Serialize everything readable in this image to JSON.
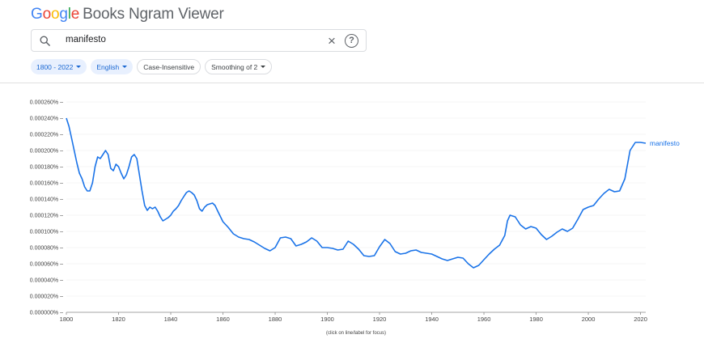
{
  "app": {
    "logo_letters": [
      "G",
      "o",
      "o",
      "g",
      "l",
      "e"
    ],
    "title_rest": "Books Ngram Viewer"
  },
  "search": {
    "value": "manifesto",
    "search_icon": "search-icon",
    "clear_icon": "close-icon",
    "help_icon": "help-icon"
  },
  "filters": {
    "year_range": "1800 - 2022",
    "corpus": "English",
    "case": "Case-Insensitive",
    "smoothing": "Smoothing of 2"
  },
  "colors": {
    "accent": "#1a73e8",
    "chip_bg": "#e8f0fe"
  },
  "footer_note": "(click on line/label for focus)",
  "chart_data": {
    "type": "line",
    "xlim": [
      1800,
      2022
    ],
    "ylim": [
      0,
      0.00026
    ],
    "y_ticks": [
      "0.000000%",
      "0.000020%",
      "0.000040%",
      "0.000060%",
      "0.000080%",
      "0.000100%",
      "0.000120%",
      "0.000140%",
      "0.000160%",
      "0.000180%",
      "0.000200%",
      "0.000220%",
      "0.000240%",
      "0.000260%"
    ],
    "x_ticks": [
      "1800",
      "1820",
      "1840",
      "1860",
      "1880",
      "1900",
      "1920",
      "1940",
      "1960",
      "1980",
      "2000",
      "2020"
    ],
    "grid": true,
    "series": [
      {
        "name": "manifesto",
        "x": [
          1800,
          1801,
          1802,
          1803,
          1804,
          1805,
          1806,
          1807,
          1808,
          1809,
          1810,
          1811,
          1812,
          1813,
          1814,
          1815,
          1816,
          1817,
          1818,
          1819,
          1820,
          1821,
          1822,
          1823,
          1824,
          1825,
          1826,
          1827,
          1828,
          1829,
          1830,
          1831,
          1832,
          1833,
          1834,
          1835,
          1836,
          1837,
          1838,
          1839,
          1840,
          1841,
          1842,
          1843,
          1844,
          1845,
          1846,
          1847,
          1848,
          1849,
          1850,
          1851,
          1852,
          1853,
          1854,
          1855,
          1856,
          1857,
          1858,
          1860,
          1862,
          1864,
          1866,
          1868,
          1870,
          1872,
          1874,
          1876,
          1878,
          1880,
          1882,
          1884,
          1886,
          1888,
          1890,
          1892,
          1894,
          1896,
          1898,
          1900,
          1902,
          1904,
          1906,
          1908,
          1910,
          1912,
          1914,
          1916,
          1918,
          1920,
          1922,
          1924,
          1926,
          1928,
          1930,
          1932,
          1934,
          1936,
          1938,
          1940,
          1942,
          1944,
          1946,
          1948,
          1950,
          1952,
          1954,
          1956,
          1958,
          1960,
          1962,
          1964,
          1966,
          1968,
          1969,
          1970,
          1972,
          1974,
          1976,
          1978,
          1980,
          1982,
          1984,
          1986,
          1988,
          1990,
          1992,
          1994,
          1996,
          1998,
          2000,
          2002,
          2004,
          2006,
          2008,
          2010,
          2012,
          2014,
          2016,
          2018,
          2020,
          2022
        ],
        "y": [
          0.00024,
          0.00023,
          0.000215,
          0.0002,
          0.000185,
          0.000172,
          0.000165,
          0.000155,
          0.00015,
          0.00015,
          0.00016,
          0.00018,
          0.000192,
          0.00019,
          0.000195,
          0.0002,
          0.000195,
          0.000178,
          0.000175,
          0.000183,
          0.00018,
          0.000172,
          0.000165,
          0.00017,
          0.00018,
          0.000192,
          0.000195,
          0.00019,
          0.00017,
          0.00015,
          0.000132,
          0.000126,
          0.00013,
          0.000128,
          0.00013,
          0.000125,
          0.000118,
          0.000113,
          0.000115,
          0.000117,
          0.00012,
          0.000125,
          0.000128,
          0.000132,
          0.000138,
          0.000143,
          0.000148,
          0.00015,
          0.000148,
          0.000145,
          0.000138,
          0.000128,
          0.000125,
          0.00013,
          0.000133,
          0.000134,
          0.000135,
          0.000132,
          0.000125,
          0.000112,
          0.000105,
          9.7e-05,
          9.3e-05,
          9.1e-05,
          9e-05,
          8.7e-05,
          8.3e-05,
          7.9e-05,
          7.6e-05,
          8e-05,
          9.2e-05,
          9.3e-05,
          9.1e-05,
          8.2e-05,
          8.4e-05,
          8.7e-05,
          9.2e-05,
          8.8e-05,
          8e-05,
          8e-05,
          7.9e-05,
          7.7e-05,
          7.8e-05,
          8.8e-05,
          8.4e-05,
          7.8e-05,
          7e-05,
          6.9e-05,
          7e-05,
          8.1e-05,
          9e-05,
          8.5e-05,
          7.5e-05,
          7.2e-05,
          7.3e-05,
          7.6e-05,
          7.7e-05,
          7.4e-05,
          7.3e-05,
          7.2e-05,
          6.9e-05,
          6.6e-05,
          6.4e-05,
          6.6e-05,
          6.8e-05,
          6.7e-05,
          6e-05,
          5.5e-05,
          5.8e-05,
          6.5e-05,
          7.2e-05,
          7.8e-05,
          8.3e-05,
          9.5e-05,
          0.000113,
          0.00012,
          0.000118,
          0.000108,
          0.000103,
          0.000106,
          0.000104,
          9.6e-05,
          9e-05,
          9.4e-05,
          9.9e-05,
          0.000103,
          0.0001,
          0.000104,
          0.000115,
          0.000127,
          0.00013,
          0.000132,
          0.00014,
          0.000147,
          0.000152,
          0.000149,
          0.00015,
          0.000165,
          0.0002,
          0.00021,
          0.00021,
          0.000209
        ]
      }
    ]
  }
}
